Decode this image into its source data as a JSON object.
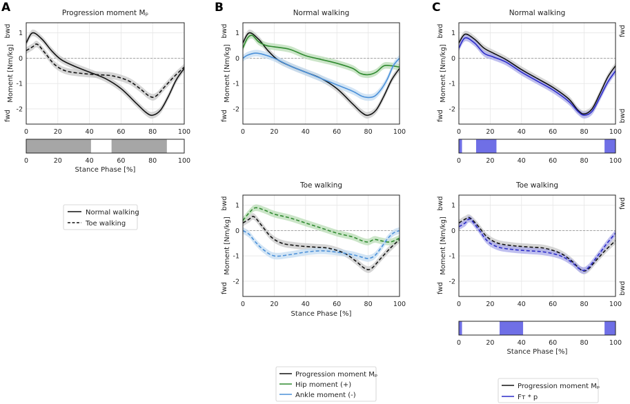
{
  "panels": [
    {
      "letter": "A"
    },
    {
      "letter": "B"
    },
    {
      "letter": "C"
    }
  ],
  "labels": {
    "ylabel": "Moment [Nm/kg]",
    "xlabel": "Stance Phase [%]",
    "bwd": "bwd",
    "fwd": "fwd"
  },
  "legend_a": [
    "Normal walking",
    "Toe walking"
  ],
  "legend_b": [
    "Progression moment Mₚ",
    "Hip moment (+)",
    "Ankle moment (-)"
  ],
  "legend_c": [
    "Progression moment Mₚ",
    "Fᴛ * p"
  ],
  "colors": {
    "black": "#111111",
    "green": "#2f8a2f",
    "blue": "#4a90d9",
    "navy": "#2b2bc8",
    "bar_gray": "#a6a6a6",
    "bar_blue": "#6f6fe6",
    "band_gray": "#c8c8c8",
    "band_green": "#b9dcb6",
    "band_blue": "#c4dcf2",
    "band_navy": "#a9a9ea"
  },
  "chart_data": [
    {
      "id": "A",
      "type": "line",
      "title": "Progression moment Mₚ",
      "xlabel": "",
      "ylabel": "Moment [Nm/kg]",
      "xlim": [
        0,
        100
      ],
      "ylim": [
        -2.6,
        1.4
      ],
      "xticks": [
        0,
        20,
        40,
        60,
        80,
        100
      ],
      "yticks": [
        1,
        0,
        -1,
        -2
      ],
      "series": [
        {
          "name": "Normal walking",
          "color": "black",
          "dash": false,
          "band": "band_gray",
          "x": [
            0,
            4,
            10,
            16,
            22,
            30,
            40,
            50,
            60,
            70,
            76,
            80,
            85,
            90,
            95,
            100
          ],
          "y": [
            0.6,
            1.0,
            0.75,
            0.3,
            -0.05,
            -0.3,
            -0.55,
            -0.8,
            -1.2,
            -1.8,
            -2.15,
            -2.25,
            -2.05,
            -1.5,
            -0.85,
            -0.4
          ]
        },
        {
          "name": "Toe walking",
          "color": "black",
          "dash": true,
          "band": "band_gray",
          "x": [
            0,
            4,
            7,
            12,
            18,
            25,
            35,
            45,
            55,
            65,
            72,
            78,
            82,
            88,
            94,
            100
          ],
          "y": [
            0.3,
            0.45,
            0.55,
            0.2,
            -0.25,
            -0.5,
            -0.6,
            -0.65,
            -0.7,
            -0.9,
            -1.2,
            -1.5,
            -1.5,
            -1.1,
            -0.7,
            -0.35
          ]
        }
      ]
    },
    {
      "id": "A-bar",
      "type": "bar",
      "xlabel": "Stance Phase [%]",
      "xlim": [
        0,
        100
      ],
      "xticks": [
        0,
        20,
        40,
        60,
        80,
        100
      ],
      "segments": [
        [
          0,
          41
        ],
        [
          54,
          89
        ]
      ],
      "fill": "bar_gray"
    },
    {
      "id": "B-normal",
      "type": "line",
      "title": "Normal walking",
      "ylabel": "Moment [Nm/kg]",
      "xlim": [
        0,
        100
      ],
      "ylim": [
        -2.6,
        1.4
      ],
      "xticks": [
        0,
        20,
        40,
        60,
        80,
        100
      ],
      "yticks": [
        1,
        0,
        -1,
        -2
      ],
      "series": [
        {
          "name": "Progression moment Mₚ",
          "color": "black",
          "dash": false,
          "band": "band_gray",
          "x": [
            0,
            4,
            10,
            16,
            22,
            30,
            40,
            50,
            60,
            70,
            76,
            80,
            85,
            90,
            95,
            100
          ],
          "y": [
            0.6,
            1.0,
            0.75,
            0.3,
            -0.05,
            -0.3,
            -0.55,
            -0.8,
            -1.2,
            -1.8,
            -2.15,
            -2.25,
            -2.05,
            -1.5,
            -0.85,
            -0.4
          ]
        },
        {
          "name": "Hip moment (+)",
          "color": "green",
          "dash": false,
          "band": "band_green",
          "x": [
            0,
            3,
            6,
            10,
            15,
            20,
            30,
            40,
            50,
            60,
            70,
            75,
            80,
            85,
            90,
            95,
            100
          ],
          "y": [
            0.4,
            0.8,
            0.9,
            0.65,
            0.5,
            0.45,
            0.35,
            0.1,
            -0.05,
            -0.2,
            -0.4,
            -0.6,
            -0.65,
            -0.55,
            -0.3,
            -0.3,
            -0.35
          ]
        },
        {
          "name": "Ankle moment (-)",
          "color": "blue",
          "dash": false,
          "band": "band_blue",
          "x": [
            0,
            3,
            8,
            13,
            20,
            30,
            40,
            50,
            60,
            70,
            76,
            80,
            84,
            88,
            92,
            96,
            100
          ],
          "y": [
            0.0,
            0.12,
            0.2,
            0.15,
            0.0,
            -0.3,
            -0.55,
            -0.8,
            -1.05,
            -1.3,
            -1.5,
            -1.55,
            -1.5,
            -1.25,
            -0.85,
            -0.3,
            0.0
          ]
        }
      ]
    },
    {
      "id": "B-toe",
      "type": "line",
      "title": "Toe walking",
      "xlabel": "Stance Phase [%]",
      "ylabel": "Moment [Nm/kg]",
      "xlim": [
        0,
        100
      ],
      "ylim": [
        -2.6,
        1.4
      ],
      "xticks": [
        0,
        20,
        40,
        60,
        80,
        100
      ],
      "yticks": [
        1,
        0,
        -1,
        -2
      ],
      "series": [
        {
          "name": "Progression moment Mₚ",
          "color": "black",
          "dash": true,
          "band": "band_gray",
          "x": [
            0,
            4,
            7,
            12,
            18,
            25,
            35,
            45,
            55,
            65,
            72,
            78,
            82,
            88,
            94,
            100
          ],
          "y": [
            0.3,
            0.45,
            0.55,
            0.2,
            -0.25,
            -0.5,
            -0.6,
            -0.65,
            -0.7,
            -0.9,
            -1.2,
            -1.5,
            -1.5,
            -1.1,
            -0.7,
            -0.35
          ]
        },
        {
          "name": "Hip moment (+)",
          "color": "green",
          "dash": true,
          "band": "band_green",
          "x": [
            0,
            4,
            8,
            14,
            20,
            30,
            40,
            50,
            60,
            70,
            76,
            80,
            84,
            88,
            94,
            100
          ],
          "y": [
            0.4,
            0.7,
            0.9,
            0.8,
            0.65,
            0.5,
            0.3,
            0.1,
            -0.1,
            -0.25,
            -0.4,
            -0.45,
            -0.35,
            -0.4,
            -0.45,
            -0.3
          ]
        },
        {
          "name": "Ankle moment (-)",
          "color": "blue",
          "dash": true,
          "band": "band_blue",
          "x": [
            0,
            4,
            8,
            13,
            20,
            30,
            40,
            50,
            60,
            70,
            76,
            80,
            84,
            88,
            92,
            96,
            100
          ],
          "y": [
            0.0,
            -0.15,
            -0.45,
            -0.75,
            -1.0,
            -0.95,
            -0.85,
            -0.8,
            -0.85,
            -0.95,
            -1.05,
            -1.1,
            -1.0,
            -0.7,
            -0.35,
            -0.1,
            0.0
          ]
        }
      ]
    },
    {
      "id": "C-normal",
      "type": "line",
      "title": "Normal walking",
      "ylabel": "Moment [Nm/kg]",
      "xlim": [
        0,
        100
      ],
      "ylim": [
        -2.6,
        1.4
      ],
      "xticks": [
        0,
        20,
        40,
        60,
        80,
        100
      ],
      "yticks": [
        1,
        0,
        -1,
        -2
      ],
      "series": [
        {
          "name": "Progression moment Mₚ",
          "color": "black",
          "dash": false,
          "band": "band_gray",
          "x": [
            0,
            4,
            10,
            16,
            22,
            30,
            40,
            50,
            60,
            70,
            76,
            80,
            85,
            90,
            95,
            100
          ],
          "y": [
            0.6,
            0.95,
            0.75,
            0.4,
            0.2,
            -0.05,
            -0.45,
            -0.8,
            -1.15,
            -1.6,
            -2.05,
            -2.2,
            -2.0,
            -1.4,
            -0.75,
            -0.3
          ]
        },
        {
          "name": "Fᴛ * p",
          "color": "navy",
          "dash": false,
          "band": "band_navy",
          "x": [
            0,
            4,
            10,
            16,
            22,
            30,
            40,
            50,
            60,
            70,
            76,
            80,
            85,
            90,
            95,
            100
          ],
          "y": [
            0.4,
            0.8,
            0.6,
            0.2,
            0.05,
            -0.15,
            -0.55,
            -0.9,
            -1.25,
            -1.7,
            -2.1,
            -2.25,
            -2.1,
            -1.55,
            -0.95,
            -0.5
          ]
        }
      ]
    },
    {
      "id": "C-bar-normal",
      "type": "bar",
      "xlim": [
        0,
        100
      ],
      "xticks": [
        0,
        20,
        40,
        60,
        80,
        100
      ],
      "segments": [
        [
          0,
          2
        ],
        [
          11,
          24
        ],
        [
          93,
          100
        ]
      ],
      "fill": "bar_blue"
    },
    {
      "id": "C-toe",
      "type": "line",
      "title": "Toe walking",
      "ylabel": "Moment [Nm/kg]",
      "xlim": [
        0,
        100
      ],
      "ylim": [
        -2.6,
        1.4
      ],
      "xticks": [
        0,
        20,
        40,
        60,
        80,
        100
      ],
      "yticks": [
        1,
        0,
        -1,
        -2
      ],
      "series": [
        {
          "name": "Progression moment Mₚ",
          "color": "black",
          "dash": true,
          "band": "band_gray",
          "x": [
            0,
            4,
            7,
            12,
            18,
            25,
            35,
            45,
            55,
            65,
            72,
            78,
            82,
            88,
            94,
            100
          ],
          "y": [
            0.3,
            0.45,
            0.5,
            0.2,
            -0.25,
            -0.5,
            -0.6,
            -0.65,
            -0.7,
            -0.9,
            -1.2,
            -1.55,
            -1.55,
            -1.15,
            -0.75,
            -0.4
          ]
        },
        {
          "name": "Fᴛ * p",
          "color": "navy",
          "dash": true,
          "band": "band_navy",
          "x": [
            0,
            4,
            7,
            12,
            18,
            25,
            35,
            45,
            55,
            65,
            72,
            78,
            82,
            88,
            94,
            100
          ],
          "y": [
            0.15,
            0.3,
            0.45,
            0.1,
            -0.4,
            -0.65,
            -0.75,
            -0.8,
            -0.85,
            -1.0,
            -1.25,
            -1.55,
            -1.5,
            -1.05,
            -0.55,
            -0.1
          ]
        }
      ]
    },
    {
      "id": "C-bar-toe",
      "type": "bar",
      "xlabel": "Stance Phase [%]",
      "xlim": [
        0,
        100
      ],
      "xticks": [
        0,
        20,
        40,
        60,
        80,
        100
      ],
      "segments": [
        [
          0,
          2
        ],
        [
          26,
          41
        ],
        [
          93,
          100
        ]
      ],
      "fill": "bar_blue"
    }
  ]
}
